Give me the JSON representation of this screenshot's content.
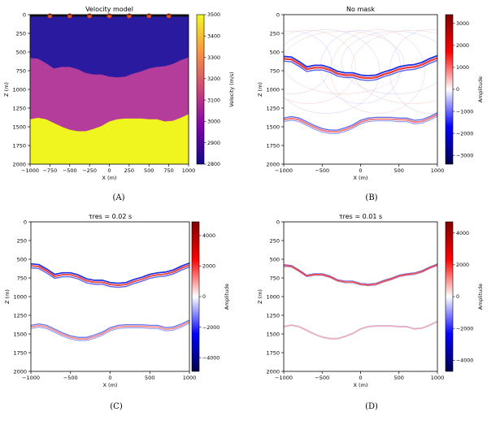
{
  "chart_data": [
    {
      "type": "heatmap",
      "title": "Velocity model",
      "xlabel": "X (m)",
      "ylabel": "Z (m)",
      "xlim": [
        -1000,
        1000
      ],
      "ylim": [
        2000,
        0
      ],
      "xticks": [
        "−1000",
        "−750",
        "−500",
        "−250",
        "0",
        "250",
        "500",
        "750",
        "1000"
      ],
      "yticks": [
        "0",
        "250",
        "500",
        "750",
        "1000",
        "1250",
        "1500",
        "1750",
        "2000"
      ],
      "colorbar": {
        "label": "Velocity (m/s)",
        "range": [
          2800,
          3500
        ],
        "ticks": [
          "3500",
          "3400",
          "3300",
          "3200",
          "3100",
          "3000",
          "2900",
          "2800"
        ]
      },
      "layers": [
        {
          "velocity": 2800,
          "color": "#2a1aa0"
        },
        {
          "velocity": 3150,
          "color": "#b43c9a"
        },
        {
          "velocity": 3500,
          "color": "#f0f520"
        }
      ],
      "interface_1": {
        "x": [
          -1000,
          -900,
          -800,
          -700,
          -600,
          -500,
          -400,
          -300,
          -200,
          -100,
          0,
          100,
          200,
          300,
          400,
          500,
          600,
          700,
          800,
          900,
          1000
        ],
        "z": [
          580,
          590,
          650,
          720,
          700,
          700,
          730,
          780,
          800,
          800,
          830,
          840,
          830,
          790,
          760,
          720,
          700,
          690,
          660,
          610,
          570
        ]
      },
      "interface_2": {
        "x": [
          -1000,
          -900,
          -800,
          -700,
          -600,
          -500,
          -400,
          -300,
          -200,
          -100,
          0,
          100,
          200,
          300,
          400,
          500,
          600,
          700,
          800,
          900,
          1000
        ],
        "z": [
          1400,
          1380,
          1400,
          1450,
          1500,
          1540,
          1560,
          1560,
          1530,
          1490,
          1430,
          1400,
          1390,
          1390,
          1390,
          1400,
          1400,
          1430,
          1420,
          1380,
          1330
        ]
      },
      "sources_x": [
        -750,
        -500,
        -250,
        0,
        250,
        500,
        750
      ],
      "caption": "(A)"
    },
    {
      "type": "heatmap",
      "title": "No mask",
      "xlabel": "X (m)",
      "ylabel": "Z (m)",
      "xlim": [
        -1000,
        1000
      ],
      "ylim": [
        2000,
        0
      ],
      "xticks": [
        "−1000",
        "−500",
        "0",
        "500",
        "1000"
      ],
      "yticks": [
        "0",
        "250",
        "500",
        "750",
        "1000",
        "1250",
        "1500",
        "1750",
        "2000"
      ],
      "colorbar": {
        "label": "Amplitude",
        "range": [
          -3400,
          3400
        ],
        "ticks": [
          "3000",
          "2000",
          "1000",
          "0",
          "−1000",
          "−2000",
          "−3000"
        ]
      },
      "caption": "(B)"
    },
    {
      "type": "heatmap",
      "title": "τres = 0.02 s",
      "xlabel": "X (m)",
      "ylabel": "Z (m)",
      "xlim": [
        -1000,
        1000
      ],
      "ylim": [
        2000,
        0
      ],
      "xticks": [
        "−1000",
        "−500",
        "0",
        "500",
        "1000"
      ],
      "yticks": [
        "0",
        "250",
        "500",
        "750",
        "1000",
        "1250",
        "1500",
        "1750",
        "2000"
      ],
      "colorbar": {
        "label": "Amplitude",
        "range": [
          -4900,
          4900
        ],
        "ticks": [
          "4000",
          "2000",
          "0",
          "−2000",
          "−4000"
        ]
      },
      "caption": "(C)"
    },
    {
      "type": "heatmap",
      "title": "τres = 0.01 s",
      "xlabel": "X (m)",
      "ylabel": "Z (m)",
      "xlim": [
        -1000,
        1000
      ],
      "ylim": [
        2000,
        0
      ],
      "xticks": [
        "−1000",
        "−500",
        "0",
        "500",
        "1000"
      ],
      "yticks": [
        "0",
        "250",
        "500",
        "750",
        "1000",
        "1250",
        "1500",
        "1750",
        "2000"
      ],
      "colorbar": {
        "label": "Amplitude",
        "range": [
          -4700,
          4700
        ],
        "ticks": [
          "4000",
          "2000",
          "0",
          "−2000",
          "−4000"
        ]
      },
      "caption": "(D)"
    }
  ]
}
